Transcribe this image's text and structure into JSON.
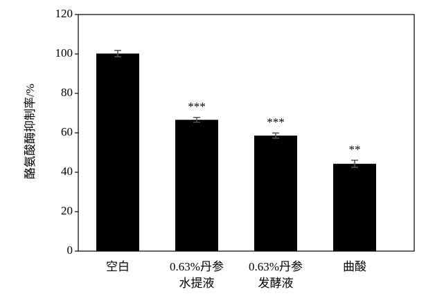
{
  "chart_data": {
    "type": "bar",
    "y_label": "酪氨酸酶抑制率/%",
    "categories": [
      [
        "空白"
      ],
      [
        "0.63%丹参",
        "水提液"
      ],
      [
        "0.63%丹参",
        "发酵液"
      ],
      [
        "曲酸"
      ]
    ],
    "values": [
      100.2,
      66.6,
      58.6,
      44.3
    ],
    "errors": [
      1.6,
      1.2,
      1.3,
      1.8
    ],
    "annotations": [
      null,
      "***",
      "***",
      "**"
    ],
    "color": "#000000",
    "ylim": [
      0,
      120
    ],
    "yticks": [
      0,
      20,
      40,
      60,
      80,
      100,
      120
    ]
  }
}
